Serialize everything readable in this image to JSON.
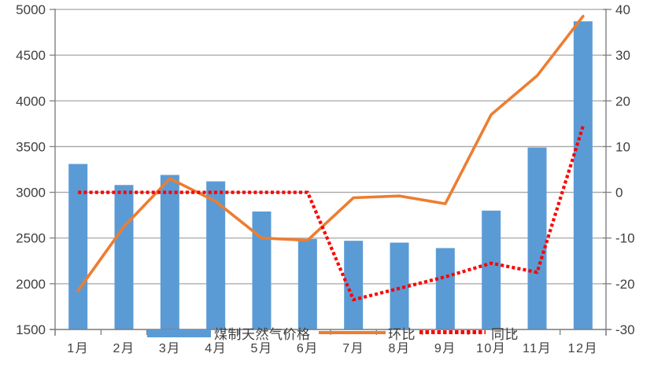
{
  "chart_data": {
    "type": "bar",
    "title": "",
    "categories": [
      "1月",
      "2月",
      "3月",
      "4月",
      "5月",
      "6月",
      "7月",
      "8月",
      "9月",
      "10月",
      "11月",
      "12月"
    ],
    "series": [
      {
        "name": "煤制天然气价格",
        "type": "bar",
        "axis": "left",
        "color": "#5B9BD5",
        "values": [
          3310,
          3080,
          3190,
          3120,
          2790,
          2490,
          2470,
          2450,
          2390,
          2800,
          3490,
          4870
        ]
      },
      {
        "name": "环比",
        "type": "line",
        "line_style": "solid",
        "axis": "right",
        "color": "#ED7D31",
        "values": [
          -21.5,
          -7.5,
          3,
          -2,
          -10,
          -10.5,
          -1.2,
          -0.8,
          -2.5,
          17,
          25.5,
          38.5
        ]
      },
      {
        "name": "同比",
        "type": "line",
        "line_style": "dotted",
        "axis": "right",
        "color": "#FF0000",
        "values": [
          0,
          0,
          0,
          0,
          0,
          0,
          -23.5,
          -21,
          -18.5,
          -15.5,
          -17.5,
          14.5
        ]
      }
    ],
    "left_axis": {
      "min": 1500,
      "max": 5000,
      "step": 500,
      "ticks": [
        "5000",
        "4500",
        "4000",
        "3500",
        "3000",
        "2500",
        "2000",
        "1500"
      ]
    },
    "right_axis": {
      "min": -30,
      "max": 40,
      "step": 10,
      "ticks": [
        "40",
        "30",
        "20",
        "10",
        "0",
        "-10",
        "-20",
        "-30"
      ]
    },
    "grid": true,
    "legend_position": "bottom-inside",
    "xlabel": "",
    "ylabel": ""
  },
  "colors": {
    "bar": "#5B9BD5",
    "mom_line": "#ED7D31",
    "yoy_line": "#FF0000",
    "gridline": "#A6A6A6",
    "axis_line": "#808080",
    "tick_text": "#3f3f3f",
    "background": "#ffffff"
  }
}
